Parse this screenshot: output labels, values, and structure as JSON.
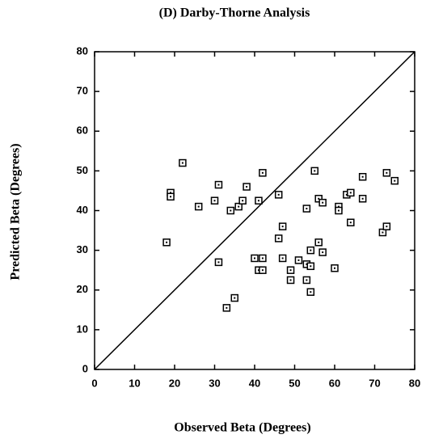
{
  "chart_data": {
    "type": "scatter",
    "title": "(D) Darby-Thorne Analysis",
    "x_label": "Observed Beta (Degrees)",
    "y_label": "Predicted Beta (Degrees)",
    "color": "#000000",
    "x": [
      18,
      19,
      19,
      22,
      26,
      30,
      31,
      31,
      33,
      34,
      35,
      36,
      37,
      38,
      40,
      41,
      41,
      42,
      42,
      42,
      46,
      46,
      47,
      47,
      49,
      49,
      51,
      53,
      53,
      53,
      54,
      54,
      54,
      55,
      56,
      56,
      57,
      57,
      60,
      61,
      61,
      63,
      64,
      64,
      67,
      67,
      72,
      73,
      73,
      75
    ],
    "values": [
      32,
      44.5,
      43.5,
      52,
      41,
      42.5,
      46.5,
      27,
      15.5,
      40,
      18,
      41,
      42.5,
      46,
      28,
      25,
      42.5,
      28,
      49.5,
      25,
      44,
      33,
      36,
      28,
      25,
      22.5,
      27.5,
      40.5,
      22.5,
      26.5,
      26,
      30,
      19.5,
      50,
      32,
      43,
      29.5,
      42,
      25.5,
      41,
      40,
      44,
      44.5,
      37,
      43,
      48.5,
      34.5,
      49.5,
      36,
      47.5
    ],
    "xlim": [
      0,
      80
    ],
    "ylim": [
      0,
      80
    ],
    "xticks": [
      0,
      10,
      20,
      30,
      40,
      50,
      60,
      70,
      80
    ],
    "yticks": [
      0,
      10,
      20,
      30,
      40,
      50,
      60,
      70,
      80
    ]
  }
}
